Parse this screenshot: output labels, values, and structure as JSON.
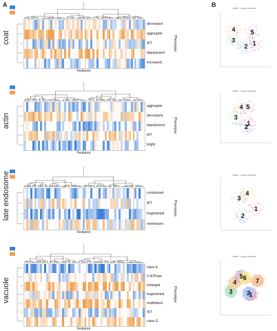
{
  "panel_letters": {
    "a": "A",
    "b": "B"
  },
  "features_label": "Features",
  "phenotype_label": "Phenotype",
  "scatter_title": "UMAP – Single cell Mode",
  "blocks": [
    {
      "key": "coat",
      "label": "coat",
      "phenotypes": [
        "decreased",
        "aggregate",
        "WT",
        "depolarized",
        "increased"
      ],
      "clusters": [
        "1",
        "2",
        "3",
        "4",
        "5"
      ],
      "colors": {
        "blue": "#3f7fd9",
        "orange": "#f0a24c"
      }
    },
    {
      "key": "actin",
      "label": "actin",
      "phenotypes": [
        "aggregate",
        "decreased",
        "depolarized",
        "WT",
        "bright"
      ],
      "clusters": [
        "1",
        "2",
        "3",
        "4",
        "5"
      ]
    },
    {
      "key": "late",
      "label": "late endosome",
      "phenotypes": [
        "condensed",
        "WT",
        "fragmented",
        "membrane"
      ],
      "clusters": [
        "1",
        "2",
        "3",
        "4"
      ]
    },
    {
      "key": "vacuole",
      "label": "vacuole",
      "phenotypes": [
        "class E",
        "V-ATPase",
        "enlarged",
        "fragmented",
        "multilobed",
        "WT",
        "class G"
      ],
      "clusters": [
        "1",
        "2",
        "3",
        "4",
        "5",
        "6",
        "7"
      ]
    }
  ]
}
